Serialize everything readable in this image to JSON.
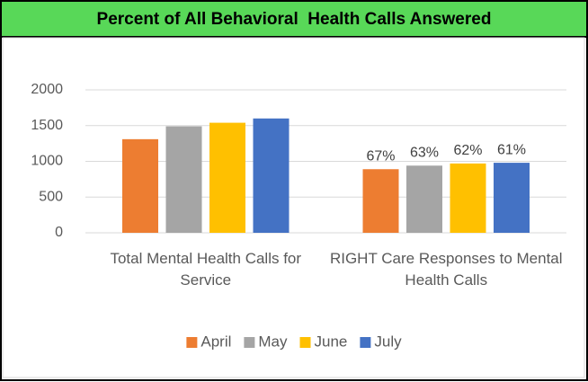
{
  "chart_data": {
    "type": "bar",
    "title": "Percent of All Behavioral  Health Calls Answered",
    "categories": [
      "Total Mental Health Calls for Service",
      "RIGHT Care Responses to Mental Health Calls"
    ],
    "series": [
      {
        "name": "April",
        "color": "#ed7d31",
        "values": [
          1310,
          890
        ]
      },
      {
        "name": "May",
        "color": "#a5a5a5",
        "values": [
          1490,
          940
        ]
      },
      {
        "name": "June",
        "color": "#ffc000",
        "values": [
          1540,
          970
        ]
      },
      {
        "name": "July",
        "color": "#4472c4",
        "values": [
          1600,
          980
        ]
      }
    ],
    "annotations": [
      "67%",
      "63%",
      "62%",
      "61%"
    ],
    "ylim": [
      0,
      2000
    ],
    "yticks": [
      0,
      500,
      1000,
      1500,
      2000
    ],
    "grid": true,
    "legend": "bottom"
  }
}
